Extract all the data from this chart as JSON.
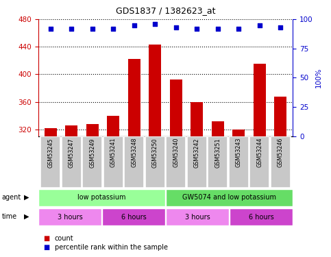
{
  "title": "GDS1837 / 1382623_at",
  "categories": [
    "GSM53245",
    "GSM53247",
    "GSM53249",
    "GSM53241",
    "GSM53248",
    "GSM53250",
    "GSM53240",
    "GSM53242",
    "GSM53251",
    "GSM53243",
    "GSM53244",
    "GSM53246"
  ],
  "bar_values": [
    322,
    326,
    328,
    340,
    422,
    443,
    392,
    360,
    332,
    320,
    415,
    368
  ],
  "percentile_values": [
    92,
    92,
    92,
    92,
    95,
    96,
    93,
    92,
    92,
    92,
    95,
    93
  ],
  "bar_color": "#cc0000",
  "dot_color": "#0000cc",
  "ylim_left": [
    310,
    480
  ],
  "ylim_right": [
    0,
    100
  ],
  "yticks_left": [
    320,
    360,
    400,
    440,
    480
  ],
  "yticks_right": [
    0,
    25,
    50,
    75,
    100
  ],
  "agent_labels": [
    {
      "text": "low potassium",
      "start": 0,
      "end": 6,
      "color": "#99ff99"
    },
    {
      "text": "GW5074 and low potassium",
      "start": 6,
      "end": 12,
      "color": "#66dd66"
    }
  ],
  "time_labels": [
    {
      "text": "3 hours",
      "start": 0,
      "end": 3,
      "color": "#ee88ee"
    },
    {
      "text": "6 hours",
      "start": 3,
      "end": 6,
      "color": "#cc44cc"
    },
    {
      "text": "3 hours",
      "start": 6,
      "end": 9,
      "color": "#ee88ee"
    },
    {
      "text": "6 hours",
      "start": 9,
      "end": 12,
      "color": "#cc44cc"
    }
  ],
  "left_axis_color": "#cc0000",
  "right_axis_color": "#0000cc",
  "background_color": "#ffffff"
}
